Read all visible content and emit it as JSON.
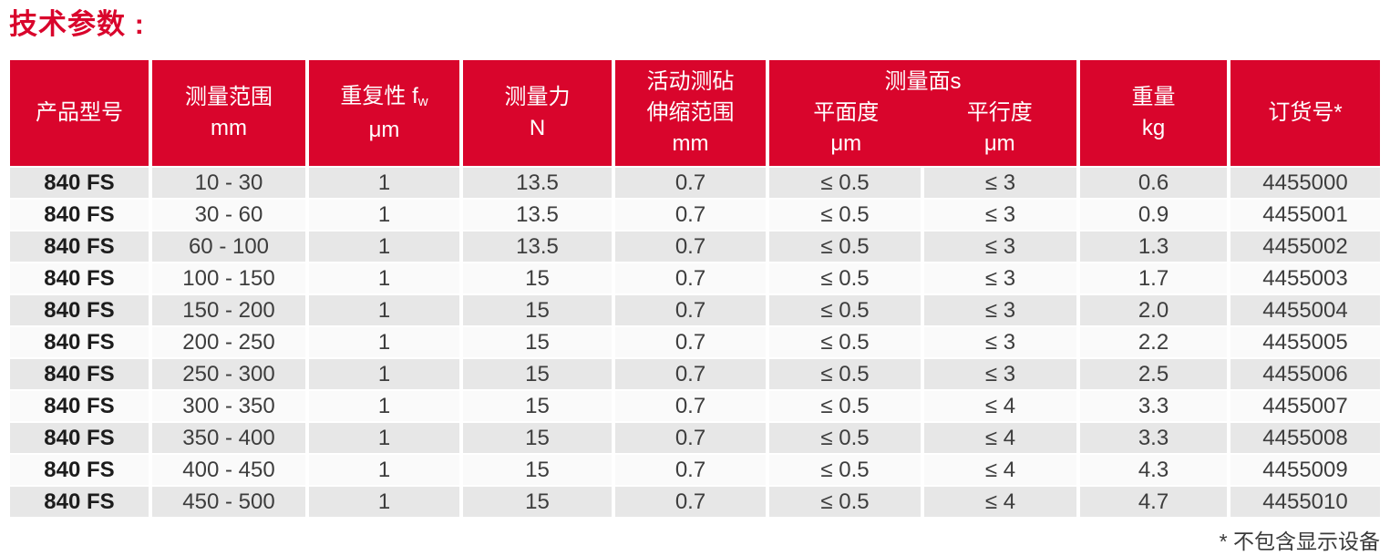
{
  "page_title": "技术参数 :",
  "footnote": "* 不包含显示设备",
  "colors": {
    "header_red": "#d9052c",
    "row_gray": "#e7e7e7",
    "row_white": "#fafafa",
    "data_text": "#3d3d3d",
    "header_text": "#ffffff"
  },
  "table": {
    "header": {
      "product_model": "产品型号",
      "range": {
        "l1": "测量范围",
        "l2": "mm"
      },
      "repeatability": {
        "l1": "重复性 f",
        "sub": "w",
        "l2": "μm"
      },
      "force": {
        "l1": "测量力",
        "l2": "N"
      },
      "anvil": {
        "l1": "活动测砧",
        "l2": "伸缩范围",
        "l3": "mm"
      },
      "surfaces_group": "测量面s",
      "flatness": {
        "l1": "平面度",
        "l2": "μm"
      },
      "parallelism": {
        "l1": "平行度",
        "l2": "μm"
      },
      "weight": {
        "l1": "重量",
        "l2": "kg"
      },
      "order_no": "订货号*"
    },
    "rows": [
      {
        "model": "840 FS",
        "range": "10 - 30",
        "repeatability": "1",
        "force": "13.5",
        "anvil_travel": "0.7",
        "flatness": "≤ 0.5",
        "parallelism": "≤ 3",
        "weight": "0.6",
        "order_no": "4455000"
      },
      {
        "model": "840 FS",
        "range": "30 - 60",
        "repeatability": "1",
        "force": "13.5",
        "anvil_travel": "0.7",
        "flatness": "≤ 0.5",
        "parallelism": "≤ 3",
        "weight": "0.9",
        "order_no": "4455001"
      },
      {
        "model": "840 FS",
        "range": "60 - 100",
        "repeatability": "1",
        "force": "13.5",
        "anvil_travel": "0.7",
        "flatness": "≤ 0.5",
        "parallelism": "≤ 3",
        "weight": "1.3",
        "order_no": "4455002"
      },
      {
        "model": "840 FS",
        "range": "100 - 150",
        "repeatability": "1",
        "force": "15",
        "anvil_travel": "0.7",
        "flatness": "≤ 0.5",
        "parallelism": "≤ 3",
        "weight": "1.7",
        "order_no": "4455003"
      },
      {
        "model": "840 FS",
        "range": "150 - 200",
        "repeatability": "1",
        "force": "15",
        "anvil_travel": "0.7",
        "flatness": "≤ 0.5",
        "parallelism": "≤ 3",
        "weight": "2.0",
        "order_no": "4455004"
      },
      {
        "model": "840 FS",
        "range": "200 - 250",
        "repeatability": "1",
        "force": "15",
        "anvil_travel": "0.7",
        "flatness": "≤ 0.5",
        "parallelism": "≤ 3",
        "weight": "2.2",
        "order_no": "4455005"
      },
      {
        "model": "840 FS",
        "range": "250 - 300",
        "repeatability": "1",
        "force": "15",
        "anvil_travel": "0.7",
        "flatness": "≤ 0.5",
        "parallelism": "≤ 3",
        "weight": "2.5",
        "order_no": "4455006"
      },
      {
        "model": "840 FS",
        "range": "300 - 350",
        "repeatability": "1",
        "force": "15",
        "anvil_travel": "0.7",
        "flatness": "≤ 0.5",
        "parallelism": "≤ 4",
        "weight": "3.3",
        "order_no": "4455007"
      },
      {
        "model": "840 FS",
        "range": "350 - 400",
        "repeatability": "1",
        "force": "15",
        "anvil_travel": "0.7",
        "flatness": "≤ 0.5",
        "parallelism": "≤ 4",
        "weight": "3.3",
        "order_no": "4455008"
      },
      {
        "model": "840 FS",
        "range": "400 - 450",
        "repeatability": "1",
        "force": "15",
        "anvil_travel": "0.7",
        "flatness": "≤ 0.5",
        "parallelism": "≤ 4",
        "weight": "4.3",
        "order_no": "4455009"
      },
      {
        "model": "840 FS",
        "range": "450 - 500",
        "repeatability": "1",
        "force": "15",
        "anvil_travel": "0.7",
        "flatness": "≤ 0.5",
        "parallelism": "≤ 4",
        "weight": "4.7",
        "order_no": "4455010"
      }
    ]
  }
}
